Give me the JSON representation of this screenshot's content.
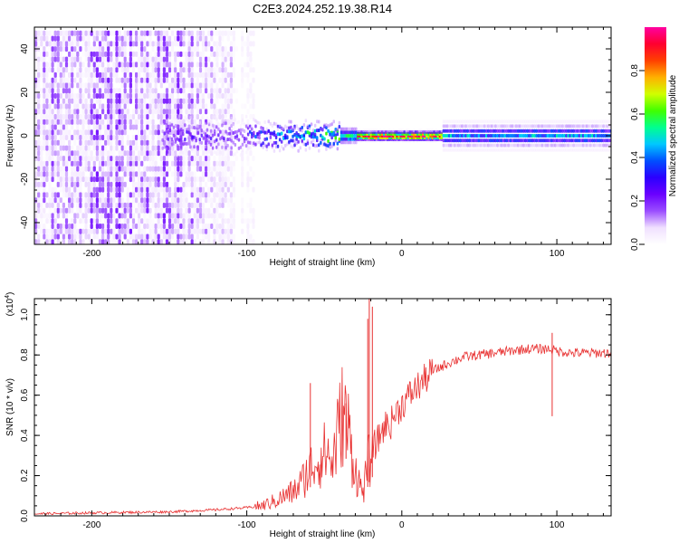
{
  "figure": {
    "title": "C2E3.2024.252.19.38.R14"
  },
  "chart_data": [
    {
      "type": "heatmap",
      "title": "C2E3.2024.252.19.38.R14",
      "xlabel": "Height of straight line (km)",
      "ylabel": "Frequency (Hz)",
      "xlim": [
        -237,
        135
      ],
      "ylim": [
        -50,
        50
      ],
      "xticks": [
        -200,
        -100,
        0,
        100
      ],
      "yticks": [
        -40,
        -20,
        0,
        20,
        40
      ],
      "xtick_labels": [
        "-200",
        "-100",
        "0",
        "100"
      ],
      "ytick_labels": [
        "-40",
        "-20",
        "0",
        "20",
        "40"
      ],
      "colorbar": {
        "label": "Normalized spectral amplitude",
        "range": [
          0,
          1
        ],
        "ticks": [
          0.0,
          0.2,
          0.4,
          0.6,
          0.8
        ],
        "tick_labels": [
          "0.0",
          "0.2",
          "0.4",
          "0.6",
          "0.8"
        ],
        "colormap": [
          "#ffffff",
          "#f0e0ff",
          "#9a4dff",
          "#6a00ff",
          "#2b00ff",
          "#0050ff",
          "#00c8ff",
          "#00ff90",
          "#40ff00",
          "#d0ff00",
          "#ffb000",
          "#ff4000",
          "#ff0030",
          "#ff00a0"
        ]
      },
      "regions": {
        "broadband_noise": {
          "x_range": [
            -237,
            -95
          ],
          "f_range": [
            -50,
            48
          ],
          "amplitude": 0.15
        },
        "narrow_band": {
          "x_range": [
            -155,
            135
          ],
          "center_f": 0,
          "peak_x": [
            -30,
            25
          ],
          "peak_amplitude": 0.95
        }
      }
    },
    {
      "type": "line",
      "xlabel": "Height of straight line (km)",
      "ylabel": "SNR (10 * v/v)",
      "y_multiplier_label": "(x10",
      "y_multiplier_exp": "4",
      "y_multiplier_close": ")",
      "xlim": [
        -237,
        135
      ],
      "ylim": [
        0,
        1.08
      ],
      "xticks": [
        -200,
        -100,
        0,
        100
      ],
      "yticks": [
        0.0,
        0.2,
        0.4,
        0.6,
        0.8,
        1.0
      ],
      "xtick_labels": [
        "-200",
        "-100",
        "0",
        "100"
      ],
      "ytick_labels": [
        "0.0",
        "0.2",
        "0.4",
        "0.6",
        "0.8",
        "1.0"
      ],
      "series": [
        {
          "name": "SNR",
          "color": "#e83030",
          "x": [
            -237,
            -200,
            -150,
            -120,
            -101,
            -90,
            -80,
            -70,
            -66,
            -62,
            -58,
            -54,
            -51,
            -48,
            -45,
            -42,
            -38,
            -35,
            -32,
            -29,
            -27,
            -25,
            -23,
            -21,
            -19,
            -17,
            -15,
            -13,
            -11,
            -9,
            -7,
            -5,
            -3,
            0,
            5,
            10,
            15,
            20,
            30,
            40,
            60,
            80,
            95,
            100,
            110,
            120,
            135
          ],
          "values": [
            0.01,
            0.015,
            0.02,
            0.03,
            0.04,
            0.05,
            0.08,
            0.12,
            0.15,
            0.2,
            0.25,
            0.28,
            0.3,
            0.32,
            0.25,
            0.38,
            0.52,
            0.45,
            0.3,
            0.2,
            0.15,
            0.12,
            0.2,
            0.28,
            0.32,
            0.36,
            0.38,
            0.42,
            0.45,
            0.45,
            0.46,
            0.5,
            0.52,
            0.55,
            0.6,
            0.64,
            0.68,
            0.72,
            0.76,
            0.79,
            0.81,
            0.83,
            0.83,
            0.82,
            0.81,
            0.81,
            0.81
          ]
        }
      ],
      "spikes": [
        {
          "x": -59,
          "value": 0.66
        },
        {
          "x": -36,
          "value": 0.56
        },
        {
          "x": -22,
          "value": 0.98
        },
        {
          "x": -21,
          "value": 1.08
        },
        {
          "x": -19,
          "value": 1.04
        },
        {
          "x": 97,
          "value": 0.91
        }
      ]
    }
  ]
}
